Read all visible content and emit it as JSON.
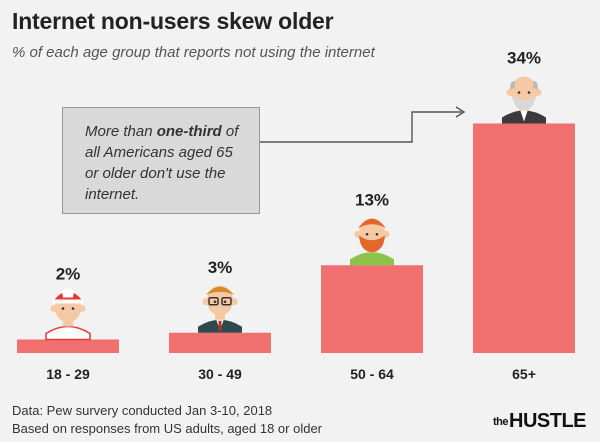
{
  "header": {
    "title": "Internet non-users skew older",
    "subtitle": "% of each age group that reports not using the internet"
  },
  "callout": {
    "prefix": "More than ",
    "bold": "one-third",
    "rest": " of all Americans aged 65 or older don't use the internet."
  },
  "chart_data": {
    "type": "bar",
    "categories": [
      "18 - 29",
      "30 - 49",
      "50 - 64",
      "65+"
    ],
    "values": [
      2,
      3,
      13,
      34
    ],
    "value_labels": [
      "2%",
      "3%",
      "13%",
      "34%"
    ],
    "title": "Internet non-users skew older",
    "subtitle": "% of each age group that reports not using the internet",
    "ylim": [
      0,
      40
    ],
    "grid": false,
    "bar_color": "#f07070"
  },
  "footer": {
    "source_line1": "Data: Pew survery conducted Jan 3-10, 2018",
    "source_line2": "Based on responses from US adults, aged 18 or older",
    "brand_small": "the",
    "brand_big": "HUSTLE"
  },
  "icons": [
    "young-man-cap-icon",
    "man-glasses-icon",
    "bearded-man-icon",
    "old-man-icon",
    "arrow-icon"
  ]
}
